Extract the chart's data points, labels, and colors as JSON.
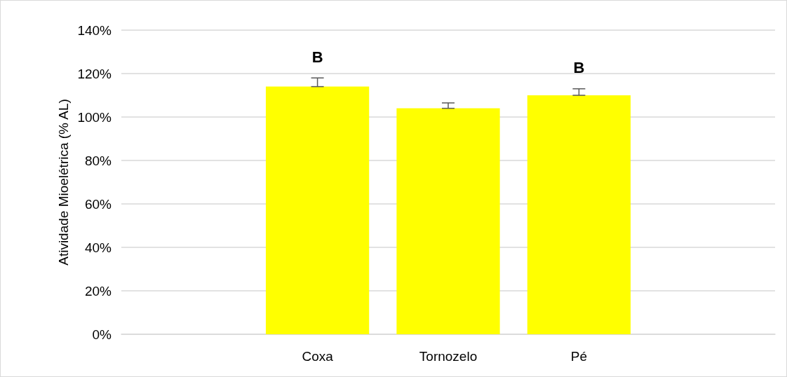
{
  "chart_data": {
    "type": "bar",
    "ylabel": "Atividade Mioelétrica (% AL)",
    "categories": [
      null,
      "Coxa",
      "Tornozelo",
      "Pé",
      null
    ],
    "values": [
      null,
      114,
      104,
      110,
      null
    ],
    "errors": [
      null,
      [
        114,
        118
      ],
      [
        104,
        106.5
      ],
      [
        110,
        113
      ],
      null
    ],
    "color": "#ffff00",
    "ylim": [
      0,
      140
    ],
    "yticks": [
      {
        "value": 0,
        "label": "0%"
      },
      {
        "value": 20,
        "label": "20%"
      },
      {
        "value": 40,
        "label": "40%"
      },
      {
        "value": 60,
        "label": "60%"
      },
      {
        "value": 80,
        "label": "80%"
      },
      {
        "value": 100,
        "label": "100%"
      },
      {
        "value": 120,
        "label": "120%"
      },
      {
        "value": 140,
        "label": "140%"
      }
    ],
    "grid": "y",
    "annotations": [
      {
        "text": "B",
        "x": "Coxa",
        "y": 118
      },
      {
        "text": "B",
        "x": "Pé",
        "y": 113
      }
    ]
  }
}
